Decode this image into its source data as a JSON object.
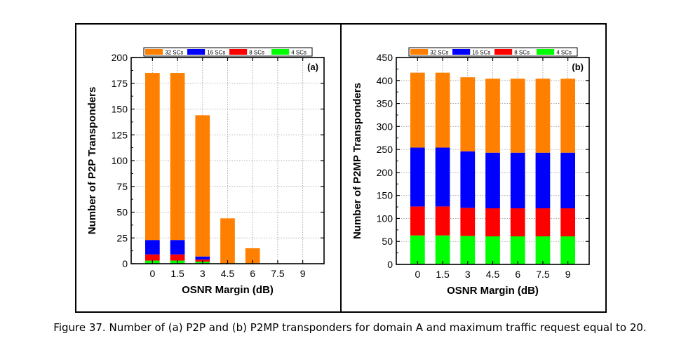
{
  "caption": "Figure 37. Number of (a) P2P and (b) P2MP transponders for domain A and maximum traffic request equal to 20.",
  "colors": {
    "32 SCs": "#ff8000",
    "16 SCs": "#0000ff",
    "8 SCs": "#ff0000",
    "4 SCs": "#00ff00"
  },
  "chart_data": [
    {
      "type": "bar",
      "stacked": true,
      "panel_label": "(a)",
      "xlabel": "OSNR Margin (dB)",
      "ylabel": "Number of P2P Transponders",
      "categories": [
        "0",
        "1.5",
        "3",
        "4.5",
        "6",
        "7.5",
        "9"
      ],
      "ylim": [
        0,
        200
      ],
      "yticks": [
        0,
        25,
        50,
        75,
        100,
        125,
        150,
        175,
        200
      ],
      "legend": [
        "32 SCs",
        "16 SCs",
        "8 SCs",
        "4 SCs"
      ],
      "legend_position": "top",
      "grid": true,
      "series": [
        {
          "name": "4 SCs",
          "values": [
            3,
            3,
            2,
            0,
            0,
            0,
            0
          ]
        },
        {
          "name": "8 SCs",
          "values": [
            6,
            6,
            2,
            0,
            0,
            0,
            0
          ]
        },
        {
          "name": "16 SCs",
          "values": [
            14,
            14,
            3,
            0,
            0,
            0,
            0
          ]
        },
        {
          "name": "32 SCs",
          "values": [
            162,
            162,
            137,
            44,
            15,
            0,
            0
          ]
        }
      ]
    },
    {
      "type": "bar",
      "stacked": true,
      "panel_label": "(b)",
      "xlabel": "OSNR Margin (dB)",
      "ylabel": "Number of P2MP Transponders",
      "categories": [
        "0",
        "1.5",
        "3",
        "4.5",
        "6",
        "7.5",
        "9"
      ],
      "ylim": [
        0,
        450
      ],
      "yticks": [
        0,
        50,
        100,
        150,
        200,
        250,
        300,
        350,
        400,
        450
      ],
      "legend": [
        "32 SCs",
        "16 SCs",
        "8 SCs",
        "4 SCs"
      ],
      "legend_position": "top",
      "grid": true,
      "series": [
        {
          "name": "4 SCs",
          "values": [
            63,
            63,
            62,
            61,
            61,
            61,
            61
          ]
        },
        {
          "name": "8 SCs",
          "values": [
            63,
            63,
            61,
            61,
            61,
            61,
            61
          ]
        },
        {
          "name": "16 SCs",
          "values": [
            128,
            128,
            123,
            121,
            121,
            121,
            121
          ]
        },
        {
          "name": "32 SCs",
          "values": [
            163,
            163,
            161,
            161,
            161,
            161,
            161
          ]
        }
      ]
    }
  ]
}
